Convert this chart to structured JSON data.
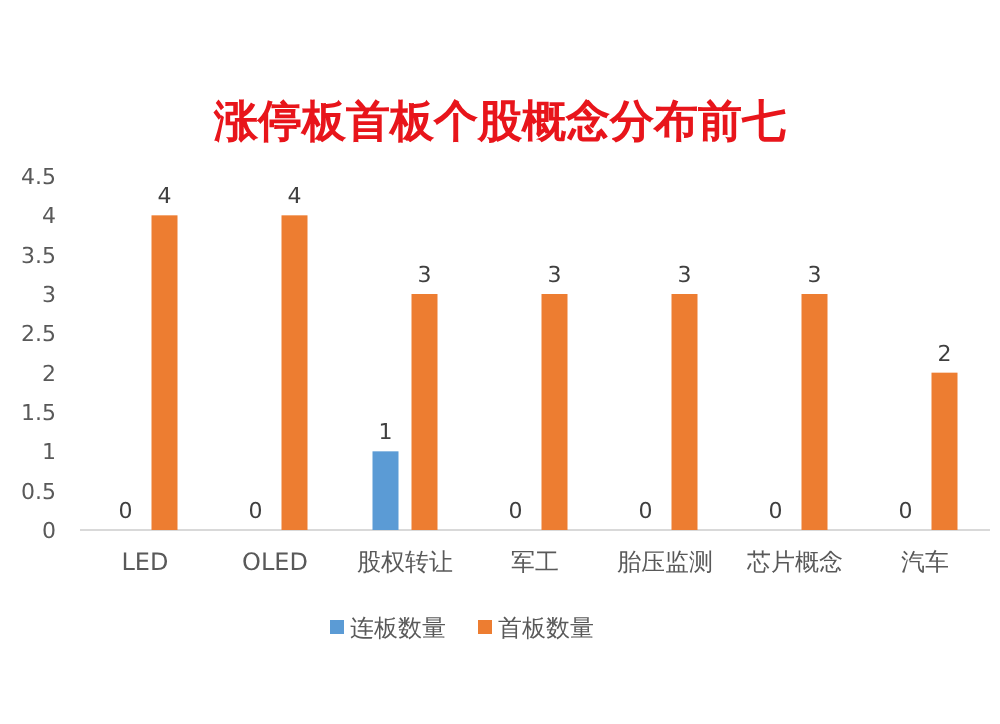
{
  "chart_data": {
    "type": "bar",
    "title": "涨停板首板个股概念分布前七",
    "categories": [
      "LED",
      "OLED",
      "股权转让",
      "军工",
      "胎压监测",
      "芯片概念",
      "汽车"
    ],
    "series": [
      {
        "name": "连板数量",
        "color": "#5b9bd5",
        "values": [
          0,
          0,
          1,
          0,
          0,
          0,
          0
        ]
      },
      {
        "name": "首板数量",
        "color": "#ed7d31",
        "values": [
          4,
          4,
          3,
          3,
          3,
          3,
          2
        ]
      }
    ],
    "ylim": [
      0,
      4.5
    ],
    "yticks": [
      0,
      0.5,
      1,
      1.5,
      2,
      2.5,
      3,
      3.5,
      4,
      4.5
    ],
    "grid": false,
    "legend": "bottom",
    "data_labels": true
  }
}
